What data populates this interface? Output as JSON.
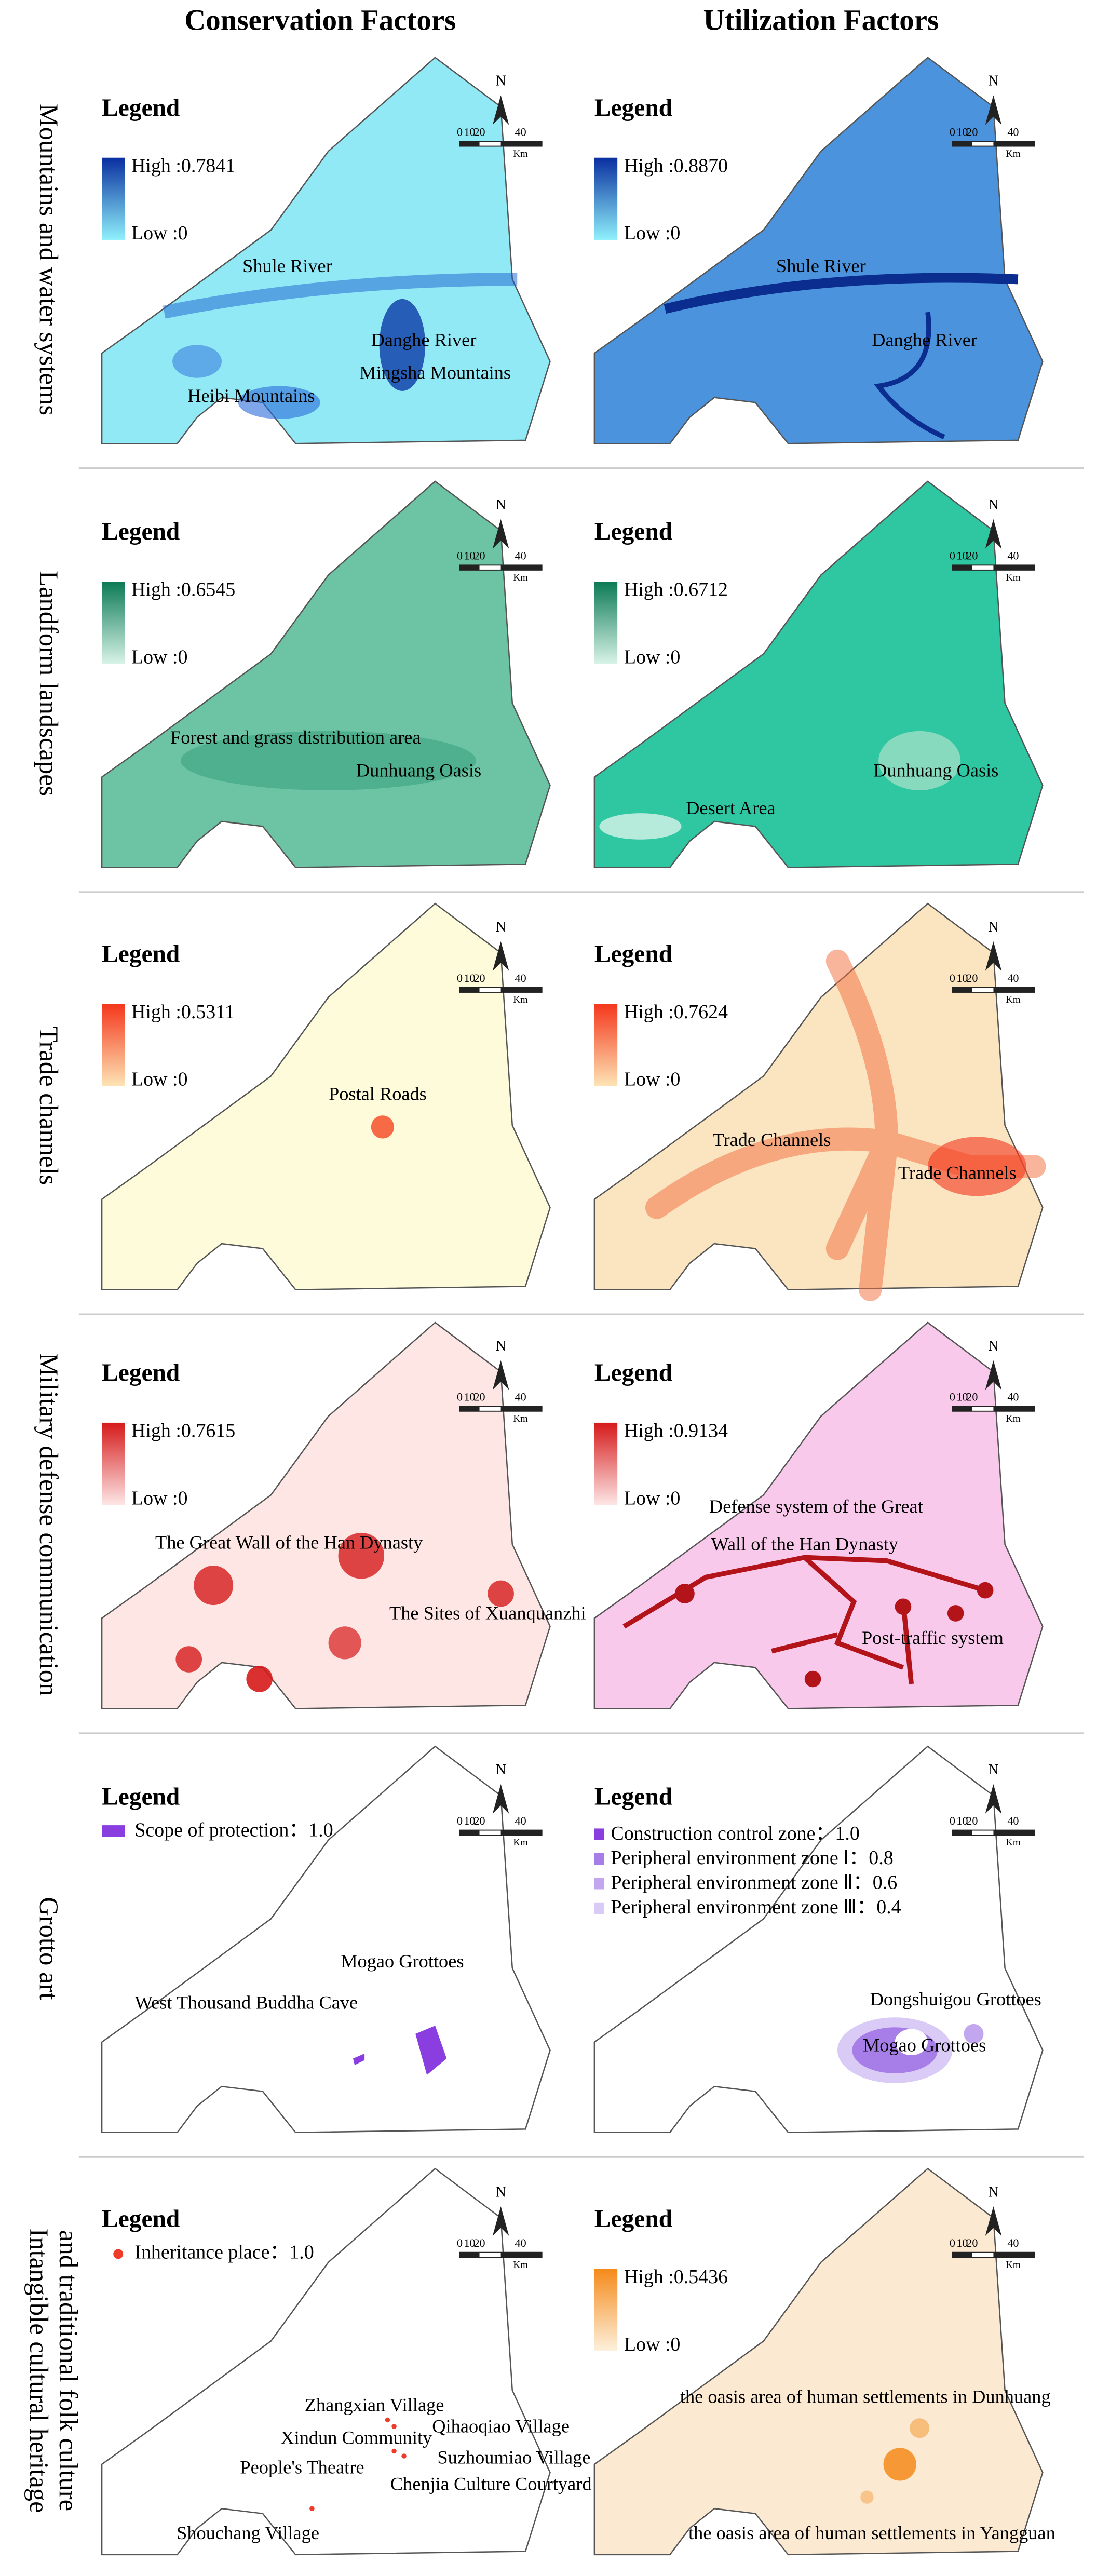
{
  "columns": [
    "Conservation Factors",
    "Utilization Factors"
  ],
  "rows": [
    [
      "Mountains and water systems"
    ],
    [
      "Landform landscapes"
    ],
    [
      "Trade channels"
    ],
    [
      "Military defense communication"
    ],
    [
      "Grotto art"
    ],
    [
      "Intangible cultural heritage",
      "and traditional folk culture"
    ]
  ],
  "north": "N",
  "scale": [
    "0",
    "10",
    "20",
    "40"
  ],
  "scale_unit": "Km",
  "panels": [
    {
      "fill": "#92e9f6",
      "legend": {
        "title": "Legend",
        "high": "High :0.7841",
        "low": "Low :0",
        "colors": [
          "#8ff0fb",
          "#0a2fa0"
        ]
      },
      "labels": [
        "Shule River",
        "Danghe River",
        "Mingsha Mountains",
        "Heibi Mountains"
      ]
    },
    {
      "fill": "#4b93dc",
      "legend": {
        "title": "Legend",
        "high": "High :0.8870",
        "low": "Low :0",
        "colors": [
          "#8ff0fb",
          "#0a2fa0"
        ]
      },
      "labels": [
        "Shule River",
        "Danghe River"
      ]
    },
    {
      "fill": "#6cc4a4",
      "legend": {
        "title": "Legend",
        "high": "High :0.6545",
        "low": "Low :0",
        "colors": [
          "#d8f3e8",
          "#0b7a55"
        ]
      },
      "labels": [
        "Forest and grass distribution area",
        "Dunhuang Oasis"
      ]
    },
    {
      "fill": "#2fc6a2",
      "legend": {
        "title": "Legend",
        "high": "High :0.6712",
        "low": "Low :0",
        "colors": [
          "#d8f3e8",
          "#0b7a55"
        ]
      },
      "labels": [
        "Dunhuang Oasis",
        "Desert Area"
      ]
    },
    {
      "fill": "#fdfbd9",
      "legend": {
        "title": "Legend",
        "high": "High :0.5311",
        "low": "Low :0",
        "colors": [
          "#fde4b4",
          "#f4361c"
        ]
      },
      "labels": [
        "Postal Roads"
      ]
    },
    {
      "fill": "#fbe4c0",
      "legend": {
        "title": "Legend",
        "high": "High :0.7624",
        "low": "Low :0",
        "colors": [
          "#fde4b4",
          "#f4361c"
        ]
      },
      "labels": [
        "Trade Channels",
        "Trade Channels"
      ]
    },
    {
      "fill": "#fde6e3",
      "legend": {
        "title": "Legend",
        "high": "High :0.7615",
        "low": "Low :0",
        "colors": [
          "#fde6e6",
          "#d61a1a"
        ]
      },
      "labels": [
        "The Great Wall of the Han Dynasty",
        "The Sites of Xuanquanzhi"
      ]
    },
    {
      "fill": "#f9c9ec",
      "legend": {
        "title": "Legend",
        "high": "High :0.9134",
        "low": "Low :0",
        "colors": [
          "#fde6e6",
          "#d61a1a"
        ]
      },
      "labels": [
        "Defense system of the Great",
        "Wall of the Han Dynasty",
        "Post-traffic system"
      ]
    },
    {
      "fill": "#ffffff",
      "legend": {
        "title": "Legend",
        "items": [
          {
            "label": "Scope of protection：1.0",
            "color": "#8b3ee0"
          }
        ]
      },
      "labels": [
        "Mogao Grottoes",
        "West Thousand Buddha Cave"
      ]
    },
    {
      "fill": "#ffffff",
      "legend": {
        "title": "Legend",
        "items": [
          {
            "label": "Construction control zone：1.0",
            "color": "#8b3ee0"
          },
          {
            "label": "Peripheral environment zone Ⅰ：0.8",
            "color": "#a77ee8"
          },
          {
            "label": "Peripheral environment zone Ⅱ：0.6",
            "color": "#c2a6f0"
          },
          {
            "label": "Peripheral environment zone Ⅲ：0.4",
            "color": "#d9cbf6"
          }
        ]
      },
      "labels": [
        "Dongshuigou Grottoes",
        "Mogao Grottoes"
      ]
    },
    {
      "fill": "#ffffff",
      "legend": {
        "title": "Legend",
        "items": [
          {
            "label": "Inheritance place：1.0",
            "color": "#ee3b2a",
            "dot": true
          }
        ]
      },
      "labels": [
        "Zhangxian Village",
        "Xindun Community",
        "Qihaoqiao Village",
        "People's Theatre",
        "Suzhoumiao Village",
        "Chenjia Culture Courtyard",
        "Shouchang Village"
      ]
    },
    {
      "fill": "#fbe9d2",
      "legend": {
        "title": "Legend",
        "high": "High :0.5436",
        "low": "Low :0",
        "colors": [
          "#fdf0dc",
          "#f58a1a"
        ]
      },
      "labels": [
        "the oasis area of human settlements in Dunhuang",
        "the oasis area of human settlements in Yangguan"
      ]
    }
  ]
}
